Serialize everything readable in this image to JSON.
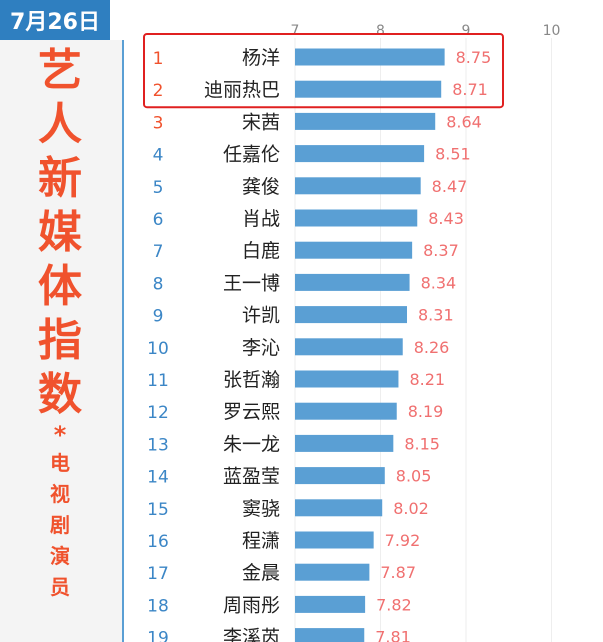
{
  "date": "7月26日",
  "title_big": [
    "艺",
    "人",
    "新",
    "媒",
    "体",
    "指",
    "数"
  ],
  "title_star": "*",
  "subtitle": [
    "电",
    "视",
    "剧",
    "演",
    "员"
  ],
  "highlight_color": "#e02020",
  "colors": {
    "accent": "#2f7fc0",
    "bar": "#5a9fd4",
    "value": "#f07070",
    "title": "#f0522d",
    "rank_top": "#f0522d",
    "rank": "#3b86c6"
  },
  "chart_data": {
    "type": "bar",
    "orientation": "horizontal",
    "xlim": [
      7,
      10
    ],
    "xticks": [
      7,
      8,
      9,
      10
    ],
    "grid": true,
    "ranks": [
      1,
      2,
      3,
      4,
      5,
      6,
      7,
      8,
      9,
      10,
      11,
      12,
      13,
      14,
      15,
      16,
      17,
      18,
      19
    ],
    "categories": [
      "杨洋",
      "迪丽热巴",
      "宋茜",
      "任嘉伦",
      "龚俊",
      "肖战",
      "白鹿",
      "王一博",
      "许凯",
      "李沁",
      "张哲瀚",
      "罗云熙",
      "朱一龙",
      "蓝盈莹",
      "窦骁",
      "程潇",
      "金晨",
      "周雨彤",
      "李溪芮"
    ],
    "values": [
      8.75,
      8.71,
      8.64,
      8.51,
      8.47,
      8.43,
      8.37,
      8.34,
      8.31,
      8.26,
      8.21,
      8.19,
      8.15,
      8.05,
      8.02,
      7.92,
      7.87,
      7.82,
      7.81
    ],
    "highlighted_ranks": [
      1,
      2
    ]
  }
}
